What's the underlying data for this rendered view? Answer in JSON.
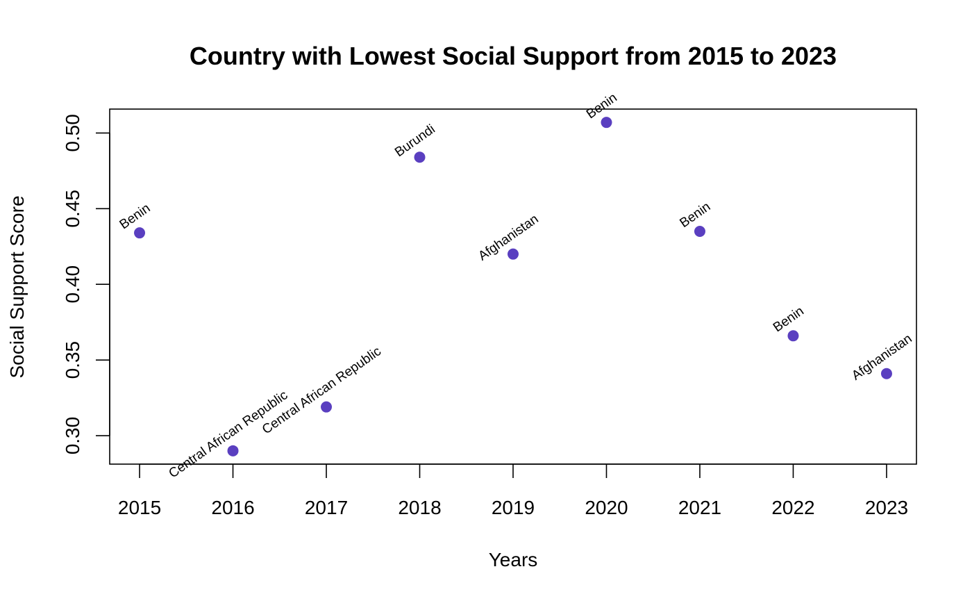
{
  "chart_data": {
    "type": "scatter",
    "title": "Country with Lowest Social Support from 2015 to 2023",
    "xlabel": "Years",
    "ylabel": "Social Support Score",
    "x": [
      2015,
      2016,
      2017,
      2018,
      2019,
      2020,
      2021,
      2022,
      2023
    ],
    "y": [
      0.434,
      0.29,
      0.319,
      0.484,
      0.42,
      0.507,
      0.435,
      0.366,
      0.341
    ],
    "point_labels": [
      "Benin",
      "Central African Republic",
      "Central African Republic",
      "Burundi",
      "Afghanistan",
      "Benin",
      "Benin",
      "Benin",
      "Afghanistan"
    ],
    "x_ticks": [
      "2015",
      "2016",
      "2017",
      "2018",
      "2019",
      "2020",
      "2021",
      "2022",
      "2023"
    ],
    "y_ticks": [
      "0.30",
      "0.35",
      "0.40",
      "0.45",
      "0.50"
    ],
    "xlim": [
      2014.68,
      2023.32
    ],
    "ylim": [
      0.2812,
      0.5158
    ],
    "point_color": "#5A3FC0",
    "grid": false,
    "legend": "none"
  }
}
